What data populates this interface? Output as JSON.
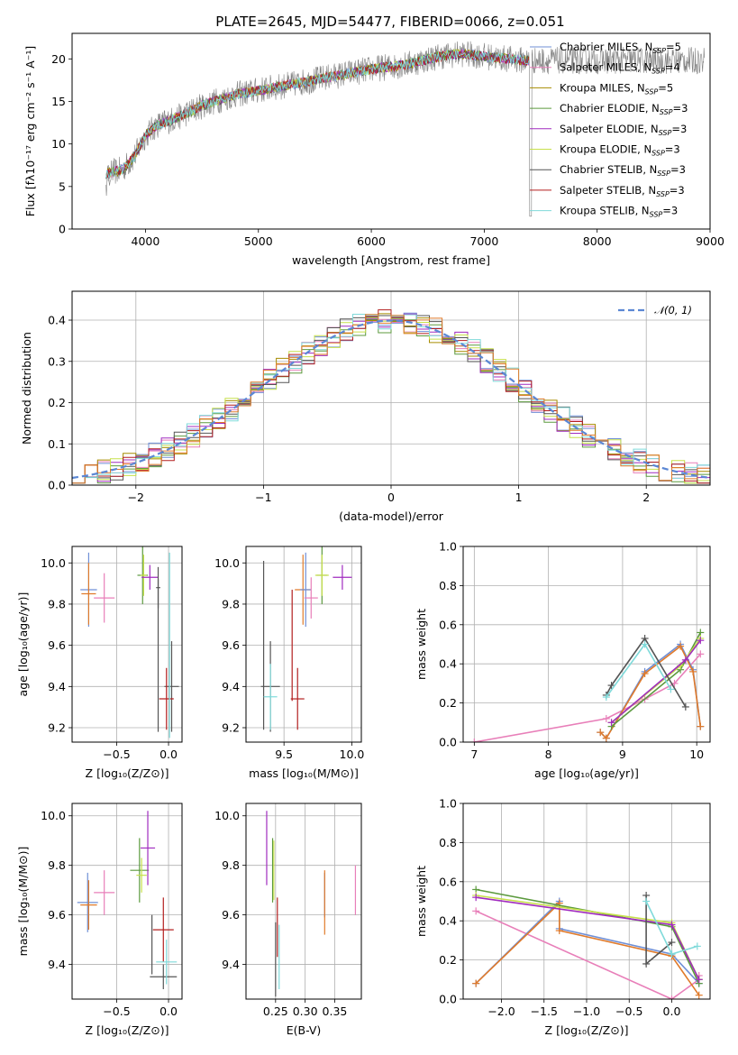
{
  "title": "PLATE=2645, MJD=54477, FIBERID=0066, z=0.051",
  "colors": {
    "c_miles": "#6f8fd6",
    "s_miles": "#e87fb9",
    "k_miles": "#a68c00",
    "c_elodie": "#5c9a3e",
    "s_elodie": "#a02bbf",
    "k_elodie": "#c7e04c",
    "c_stelib": "#555555",
    "s_stelib": "#b31f1f",
    "k_stelib": "#7fdada",
    "orange": "#e07a2a",
    "grey_data": "#808080",
    "gauss": "#5b87d4"
  },
  "chart_data": [
    {
      "id": "spectrum",
      "type": "line",
      "xlabel": "wavelength [Angstrom, rest frame]",
      "ylabel": "Flux [fλ10⁻¹⁷ erg cm⁻² s⁻¹ A⁻¹]",
      "xlim": [
        3350,
        9000
      ],
      "ylim": [
        0,
        23
      ],
      "xticks": [
        "4000",
        "5000",
        "6000",
        "7000",
        "8000",
        "9000"
      ],
      "xtick_values": [
        4000,
        5000,
        6000,
        7000,
        8000,
        9000
      ],
      "yticks": [
        "0",
        "5",
        "10",
        "15",
        "20"
      ],
      "ytick_values": [
        0,
        5,
        10,
        15,
        20
      ],
      "legend": [
        {
          "pre": "Chabrier MILES, N",
          "sub": "SSP",
          "post": "=5",
          "color": "c_miles"
        },
        {
          "pre": "Salpeter MILES, N",
          "sub": "SSP",
          "post": "=4",
          "color": "s_miles"
        },
        {
          "pre": "Kroupa MILES, N",
          "sub": "SSP",
          "post": "=5",
          "color": "k_miles"
        },
        {
          "pre": "Chabrier ELODIE, N",
          "sub": "SSP",
          "post": "=3",
          "color": "c_elodie"
        },
        {
          "pre": "Salpeter ELODIE, N",
          "sub": "SSP",
          "post": "=3",
          "color": "s_elodie"
        },
        {
          "pre": "Kroupa ELODIE, N",
          "sub": "SSP",
          "post": "=3",
          "color": "k_elodie"
        },
        {
          "pre": "Chabrier STELIB, N",
          "sub": "SSP",
          "post": "=3",
          "color": "c_stelib"
        },
        {
          "pre": "Salpeter STELIB, N",
          "sub": "SSP",
          "post": "=3",
          "color": "s_stelib"
        },
        {
          "pre": "Kroupa STELIB, N",
          "sub": "SSP",
          "post": "=3",
          "color": "k_stelib"
        }
      ],
      "continuum": [
        [
          3650,
          6.5
        ],
        [
          3800,
          7
        ],
        [
          3900,
          8.5
        ],
        [
          4000,
          11
        ],
        [
          4100,
          12.2
        ],
        [
          4300,
          13.2
        ],
        [
          4500,
          14.5
        ],
        [
          4800,
          15.8
        ],
        [
          5000,
          16.3
        ],
        [
          5300,
          17
        ],
        [
          5600,
          17.8
        ],
        [
          6000,
          18.8
        ],
        [
          6300,
          19.3
        ],
        [
          6600,
          20.3
        ],
        [
          6800,
          20.6
        ],
        [
          7000,
          20.3
        ],
        [
          7200,
          20
        ],
        [
          7400,
          19.8
        ]
      ],
      "data_end": 8950
    },
    {
      "id": "residuals",
      "type": "step",
      "xlabel": "(data-model)/error",
      "ylabel": "Normed distribution",
      "xlim": [
        -2.5,
        2.5
      ],
      "ylim": [
        0,
        0.47
      ],
      "xticks": [
        "−2",
        "−1",
        "0",
        "1",
        "2"
      ],
      "xtick_values": [
        -2,
        -1,
        0,
        1,
        2
      ],
      "yticks": [
        "0.0",
        "0.1",
        "0.2",
        "0.3",
        "0.4"
      ],
      "ytick_values": [
        0,
        0.1,
        0.2,
        0.3,
        0.4
      ],
      "legend": "𝒩(0, 1)",
      "bin_width": 0.1
    },
    {
      "id": "age_vs_Z",
      "type": "errorbar",
      "xlabel": "Z [log₁₀(Z/Z⊙)]",
      "ylabel": "age  [log₁₀(age/yr)]",
      "xlim": [
        -0.93,
        0.13
      ],
      "ylim": [
        9.13,
        10.08
      ],
      "xticks": [
        "−0.5",
        "0.0"
      ],
      "xtick_values": [
        -0.5,
        0
      ],
      "yticks": [
        "9.2",
        "9.4",
        "9.6",
        "9.8",
        "10.0"
      ],
      "ytick_values": [
        9.2,
        9.4,
        9.6,
        9.8,
        10.0
      ],
      "points": [
        {
          "c": "c_miles",
          "x": -0.77,
          "y": 9.87,
          "xe": 0.08,
          "ye": 0.18
        },
        {
          "c": "orange",
          "x": -0.77,
          "y": 9.85,
          "xe": 0.07,
          "ye": 0.15
        },
        {
          "c": "s_miles",
          "x": -0.62,
          "y": 9.83,
          "xe": 0.1,
          "ye": 0.12
        },
        {
          "c": "c_elodie",
          "x": -0.25,
          "y": 9.94,
          "xe": 0.05,
          "ye": 0.14
        },
        {
          "c": "k_elodie",
          "x": -0.24,
          "y": 9.94,
          "xe": 0.03,
          "ye": 0.1
        },
        {
          "c": "s_elodie",
          "x": -0.18,
          "y": 9.93,
          "xe": 0.08,
          "ye": 0.06
        },
        {
          "c": "c_stelib",
          "x": -0.1,
          "y": 9.88,
          "xe": 0.02,
          "ye": 0.1
        },
        {
          "c": "c_stelib",
          "x": -0.1,
          "y": 9.55,
          "xe": 0,
          "ye": 0.37
        },
        {
          "c": "c_stelib",
          "x": 0.03,
          "y": 9.4,
          "xe": 0.07,
          "ye": 0.22
        },
        {
          "c": "s_stelib",
          "x": -0.02,
          "y": 9.34,
          "xe": 0.07,
          "ye": 0.15
        },
        {
          "c": "k_stelib",
          "x": 0.01,
          "y": 9.6,
          "xe": 0,
          "ye": 0.45
        }
      ]
    },
    {
      "id": "age_vs_mass",
      "type": "errorbar",
      "xlabel": "mass [log₁₀(M/M⊙)]",
      "ylabel": "",
      "xlim": [
        9.22,
        10.07
      ],
      "ylim": [
        9.13,
        10.08
      ],
      "xticks": [
        "9.5",
        "10.0"
      ],
      "xtick_values": [
        9.5,
        10.0
      ],
      "yticks": [
        "9.2",
        "9.4",
        "9.6",
        "9.8",
        "10.0"
      ],
      "ytick_values": [
        9.2,
        9.4,
        9.6,
        9.8,
        10.0
      ],
      "points": [
        {
          "c": "c_stelib",
          "x": 9.35,
          "y": 9.6,
          "xe": 0,
          "ye": 0.41
        },
        {
          "c": "c_stelib",
          "x": 9.4,
          "y": 9.4,
          "xe": 0.07,
          "ye": 0.22
        },
        {
          "c": "k_stelib",
          "x": 9.4,
          "y": 9.35,
          "xe": 0.05,
          "ye": 0.16
        },
        {
          "c": "s_stelib",
          "x": 9.6,
          "y": 9.34,
          "xe": 0.05,
          "ye": 0.15
        },
        {
          "c": "s_stelib",
          "x": 9.56,
          "y": 9.6,
          "xe": 0,
          "ye": 0.27
        },
        {
          "c": "orange",
          "x": 9.64,
          "y": 9.87,
          "xe": 0.06,
          "ye": 0.17
        },
        {
          "c": "c_miles",
          "x": 9.66,
          "y": 9.87,
          "xe": 0.04,
          "ye": 0.18
        },
        {
          "c": "s_miles",
          "x": 9.7,
          "y": 9.83,
          "xe": 0.05,
          "ye": 0.1
        },
        {
          "c": "c_elodie",
          "x": 9.78,
          "y": 9.94,
          "xe": 0.04,
          "ye": 0.14
        },
        {
          "c": "k_elodie",
          "x": 9.78,
          "y": 9.94,
          "xe": 0.05,
          "ye": 0.1
        },
        {
          "c": "s_elodie",
          "x": 9.93,
          "y": 9.93,
          "xe": 0.07,
          "ye": 0.06
        }
      ]
    },
    {
      "id": "weight_vs_age",
      "type": "line",
      "xlabel": "age  [log₁₀(age/yr)]",
      "ylabel": "mass weight",
      "xlim": [
        6.85,
        10.18
      ],
      "ylim": [
        0,
        1
      ],
      "xticks": [
        "7",
        "8",
        "9",
        "10"
      ],
      "xtick_values": [
        7,
        8,
        9,
        10
      ],
      "yticks": [
        "0.0",
        "0.2",
        "0.4",
        "0.6",
        "0.8",
        "1.0"
      ],
      "ytick_values": [
        0,
        0.2,
        0.4,
        0.6,
        0.8,
        1.0
      ],
      "series": [
        {
          "c": "s_miles",
          "x": [
            7.0,
            8.78,
            9.3,
            9.7,
            10.05
          ],
          "y": [
            0.0,
            0.12,
            0.22,
            0.3,
            0.45
          ]
        },
        {
          "c": "c_miles",
          "x": [
            8.7,
            8.78,
            9.3,
            9.78,
            9.95,
            10.05
          ],
          "y": [
            0.05,
            0.02,
            0.36,
            0.5,
            0.37,
            0.08
          ]
        },
        {
          "c": "orange",
          "x": [
            8.7,
            8.78,
            9.3,
            9.78,
            9.95,
            10.05
          ],
          "y": [
            0.05,
            0.02,
            0.35,
            0.49,
            0.36,
            0.08
          ]
        },
        {
          "c": "c_elodie",
          "x": [
            8.85,
            9.78,
            10.05
          ],
          "y": [
            0.08,
            0.37,
            0.56
          ]
        },
        {
          "c": "k_elodie",
          "x": [
            8.85,
            9.78,
            10.05
          ],
          "y": [
            0.1,
            0.39,
            0.53
          ]
        },
        {
          "c": "s_elodie",
          "x": [
            8.85,
            9.85,
            10.05
          ],
          "y": [
            0.1,
            0.42,
            0.52
          ]
        },
        {
          "c": "c_stelib",
          "x": [
            8.78,
            8.85,
            9.3,
            9.85
          ],
          "y": [
            0.24,
            0.29,
            0.53,
            0.18
          ]
        },
        {
          "c": "k_stelib",
          "x": [
            8.78,
            9.3,
            9.65
          ],
          "y": [
            0.23,
            0.5,
            0.27
          ]
        }
      ]
    },
    {
      "id": "mass_vs_Z",
      "type": "errorbar",
      "xlabel": "Z [log₁₀(Z/Z⊙)]",
      "ylabel": "mass [log₁₀(M/M⊙)]",
      "xlim": [
        -0.93,
        0.13
      ],
      "ylim": [
        9.26,
        10.05
      ],
      "xticks": [
        "−0.5",
        "0.0"
      ],
      "xtick_values": [
        -0.5,
        0
      ],
      "yticks": [
        "9.4",
        "9.6",
        "9.8",
        "10.0"
      ],
      "ytick_values": [
        9.4,
        9.6,
        9.8,
        10.0
      ],
      "points": [
        {
          "c": "c_miles",
          "x": -0.78,
          "y": 9.65,
          "xe": 0.1,
          "ye": 0.12
        },
        {
          "c": "orange",
          "x": -0.77,
          "y": 9.64,
          "xe": 0.08,
          "ye": 0.1
        },
        {
          "c": "s_miles",
          "x": -0.62,
          "y": 9.69,
          "xe": 0.1,
          "ye": 0.09
        },
        {
          "c": "c_elodie",
          "x": -0.28,
          "y": 9.78,
          "xe": 0.09,
          "ye": 0.13
        },
        {
          "c": "k_elodie",
          "x": -0.26,
          "y": 9.76,
          "xe": 0.05,
          "ye": 0.07
        },
        {
          "c": "s_elodie",
          "x": -0.2,
          "y": 9.87,
          "xe": 0.07,
          "ye": 0.15
        },
        {
          "c": "c_stelib",
          "x": -0.16,
          "y": 9.48,
          "xe": 0,
          "ye": 0.12
        },
        {
          "c": "c_stelib",
          "x": -0.05,
          "y": 9.35,
          "xe": 0.13,
          "ye": 0.05
        },
        {
          "c": "s_stelib",
          "x": -0.05,
          "y": 9.54,
          "xe": 0.1,
          "ye": 0.13
        },
        {
          "c": "k_stelib",
          "x": -0.02,
          "y": 9.41,
          "xe": 0.1,
          "ye": 0.09
        }
      ]
    },
    {
      "id": "mass_vs_EBV",
      "type": "errorbar",
      "xlabel": "E(B-V)",
      "ylabel": "",
      "xlim": [
        0.2,
        0.395
      ],
      "ylim": [
        9.26,
        10.05
      ],
      "xticks": [
        "0.25",
        "0.30",
        "0.35"
      ],
      "xtick_values": [
        0.25,
        0.3,
        0.35
      ],
      "yticks": [
        "9.4",
        "9.6",
        "9.8",
        "10.0"
      ],
      "ytick_values": [
        9.4,
        9.6,
        9.8,
        10.0
      ],
      "points": [
        {
          "c": "s_elodie",
          "x": 0.235,
          "y": 9.87,
          "xe": 0,
          "ye": 0.15
        },
        {
          "c": "c_elodie",
          "x": 0.245,
          "y": 9.78,
          "xe": 0,
          "ye": 0.13
        },
        {
          "c": "k_elodie",
          "x": 0.247,
          "y": 9.78,
          "xe": 0,
          "ye": 0.12
        },
        {
          "c": "c_stelib",
          "x": 0.25,
          "y": 9.42,
          "xe": 0,
          "ye": 0.15
        },
        {
          "c": "s_stelib",
          "x": 0.253,
          "y": 9.55,
          "xe": 0,
          "ye": 0.12
        },
        {
          "c": "k_stelib",
          "x": 0.256,
          "y": 9.43,
          "xe": 0,
          "ye": 0.13
        },
        {
          "c": "c_miles",
          "x": 0.333,
          "y": 9.68,
          "xe": 0,
          "ye": 0.09
        },
        {
          "c": "orange",
          "x": 0.333,
          "y": 9.65,
          "xe": 0,
          "ye": 0.13
        },
        {
          "c": "s_miles",
          "x": 0.385,
          "y": 9.7,
          "xe": 0,
          "ye": 0.1
        }
      ]
    },
    {
      "id": "weight_vs_Z",
      "type": "line",
      "xlabel": "Z [log₁₀(Z/Z⊙)]",
      "ylabel": "mass weight",
      "xlim": [
        -2.45,
        0.45
      ],
      "ylim": [
        0,
        1
      ],
      "xticks": [
        "−2.0",
        "−1.5",
        "−1.0",
        "−0.5",
        "0.0"
      ],
      "xtick_values": [
        -2.0,
        -1.5,
        -1.0,
        -0.5,
        0.0
      ],
      "yticks": [
        "0.0",
        "0.2",
        "0.4",
        "0.6",
        "0.8",
        "1.0"
      ],
      "ytick_values": [
        0,
        0.2,
        0.4,
        0.6,
        0.8,
        1.0
      ],
      "series": [
        {
          "c": "s_miles",
          "x": [
            -2.3,
            0.0,
            0.32,
            0.32
          ],
          "y": [
            0.45,
            0.0,
            0.1,
            0.12
          ]
        },
        {
          "c": "c_miles",
          "x": [
            -2.3,
            -1.32,
            -1.32,
            0.0,
            0.32
          ],
          "y": [
            0.08,
            0.5,
            0.36,
            0.23,
            0.08
          ]
        },
        {
          "c": "orange",
          "x": [
            -2.3,
            -1.32,
            -1.32,
            0.0,
            0.32
          ],
          "y": [
            0.08,
            0.49,
            0.35,
            0.22,
            0.02
          ]
        },
        {
          "c": "c_elodie",
          "x": [
            -2.3,
            0.0,
            0.32
          ],
          "y": [
            0.56,
            0.37,
            0.08
          ]
        },
        {
          "c": "k_elodie",
          "x": [
            -2.3,
            0.0,
            0.32
          ],
          "y": [
            0.53,
            0.39,
            0.1
          ]
        },
        {
          "c": "s_elodie",
          "x": [
            -2.3,
            0.0,
            0.32
          ],
          "y": [
            0.52,
            0.38,
            0.1
          ]
        },
        {
          "c": "c_stelib",
          "x": [
            -0.3,
            -0.3,
            0.0
          ],
          "y": [
            0.53,
            0.18,
            0.29
          ]
        },
        {
          "c": "k_stelib",
          "x": [
            -0.3,
            0.0,
            0.3
          ],
          "y": [
            0.5,
            0.23,
            0.27
          ]
        }
      ]
    }
  ]
}
